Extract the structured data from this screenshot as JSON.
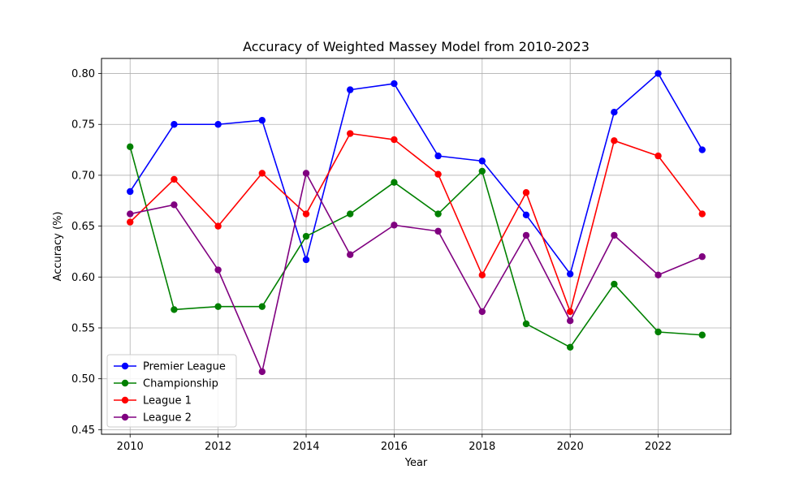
{
  "chart_data": {
    "type": "line",
    "title": "Accuracy of Weighted Massey Model from 2010-2023",
    "xlabel": "Year",
    "ylabel": "Accuracy (%)",
    "x": [
      2010,
      2011,
      2012,
      2013,
      2014,
      2015,
      2016,
      2017,
      2018,
      2019,
      2020,
      2021,
      2022,
      2023
    ],
    "xlim": [
      2009.35,
      2023.65
    ],
    "ylim": [
      0.4455,
      0.8148
    ],
    "x_ticks": [
      2010,
      2012,
      2014,
      2016,
      2018,
      2020,
      2022
    ],
    "x_tick_labels": [
      "2010",
      "2012",
      "2014",
      "2016",
      "2018",
      "2020",
      "2022"
    ],
    "y_ticks": [
      0.45,
      0.5,
      0.55,
      0.6,
      0.65,
      0.7,
      0.75,
      0.8
    ],
    "y_tick_labels": [
      "0.45",
      "0.50",
      "0.55",
      "0.60",
      "0.65",
      "0.70",
      "0.75",
      "0.80"
    ],
    "grid": true,
    "legend_position": "lower-left",
    "markers": "circle",
    "series": [
      {
        "name": "Premier League",
        "color": "#0000ff",
        "values": [
          0.684,
          0.75,
          0.75,
          0.754,
          0.617,
          0.784,
          0.79,
          0.719,
          0.714,
          0.661,
          0.603,
          0.762,
          0.8,
          0.725
        ]
      },
      {
        "name": "Championship",
        "color": "#008000",
        "values": [
          0.728,
          0.568,
          0.571,
          0.571,
          0.64,
          0.662,
          0.693,
          0.662,
          0.704,
          0.554,
          0.531,
          0.593,
          0.546,
          0.543
        ]
      },
      {
        "name": "League 1",
        "color": "#ff0000",
        "values": [
          0.654,
          0.696,
          0.65,
          0.702,
          0.662,
          0.741,
          0.735,
          0.701,
          0.602,
          0.683,
          0.566,
          0.734,
          0.719,
          0.662
        ]
      },
      {
        "name": "League 2",
        "color": "#800080",
        "values": [
          0.662,
          0.671,
          0.607,
          0.507,
          0.702,
          0.622,
          0.651,
          0.645,
          0.566,
          0.641,
          0.557,
          0.641,
          0.602,
          0.62
        ]
      }
    ]
  }
}
